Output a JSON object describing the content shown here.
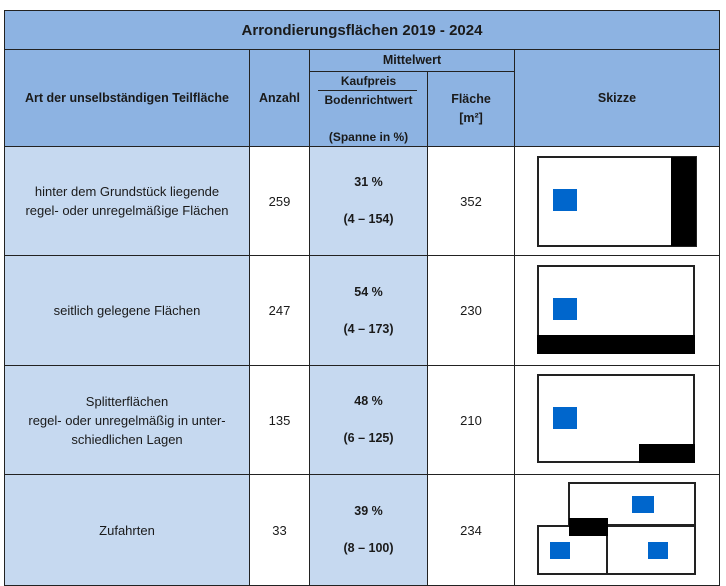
{
  "title": "Arrondierungsflächen 2019 - 2024",
  "headers": {
    "art": "Art der unselbständigen Teilfläche",
    "anzahl": "Anzahl",
    "mittelwert": "Mittelwert",
    "kaufpreis": "Kaufpreis",
    "bodenrichtwert": "Bodenrichtwert",
    "spanne": "(Spanne in %)",
    "flaeche_line1": "Fläche",
    "flaeche_line2": "[m²]",
    "skizze": "Skizze"
  },
  "rows": [
    {
      "art_line1": "hinter dem Grundstück liegende",
      "art_line2": "regel- oder unregelmäßige Flächen",
      "art_line3": "",
      "anzahl": "259",
      "prozent": "31 %",
      "spanne": "(4 – 154)",
      "flaeche": "352"
    },
    {
      "art_line1": "seitlich gelegene Flächen",
      "art_line2": "",
      "art_line3": "",
      "anzahl": "247",
      "prozent": "54 %",
      "spanne": "(4 – 173)",
      "flaeche": "230"
    },
    {
      "art_line1": "Splitterflächen",
      "art_line2": "regel- oder unregelmäßig in unter-",
      "art_line3": "schiedlichen Lagen",
      "anzahl": "135",
      "prozent": "48 %",
      "spanne": "(6 – 125)",
      "flaeche": "210"
    },
    {
      "art_line1": "Zufahrten",
      "art_line2": "",
      "art_line3": "",
      "anzahl": "33",
      "prozent": "39 %",
      "spanne": "(8 – 100)",
      "flaeche": "234"
    }
  ],
  "colors": {
    "header_bg": "#8db3e2",
    "label_bg": "#c6d9f0",
    "parcel_blue": "#0066cc",
    "area_black": "#000000"
  }
}
